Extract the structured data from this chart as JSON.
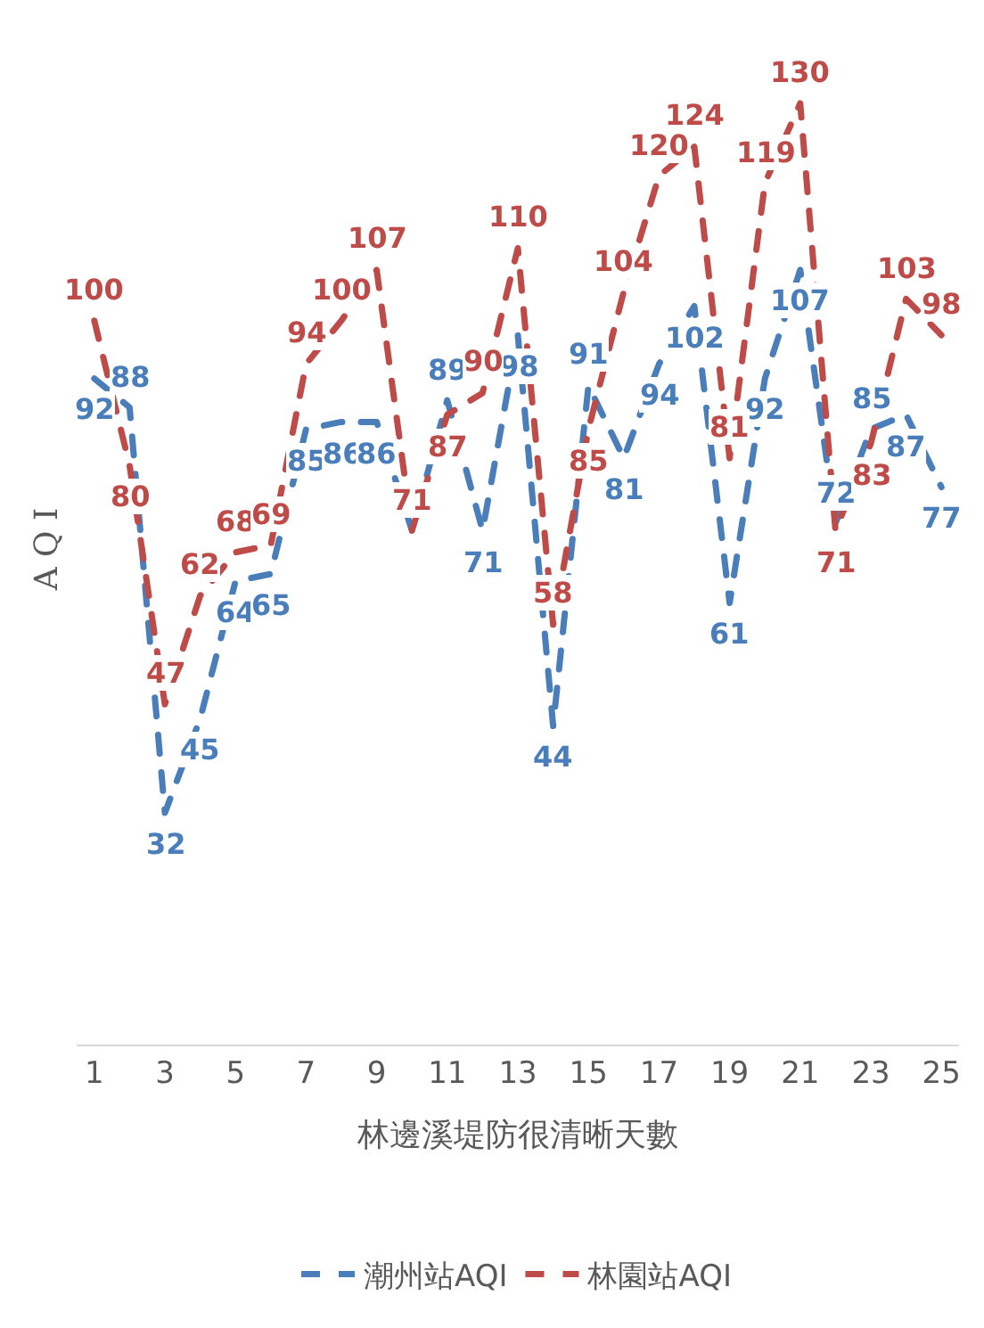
{
  "chart_data": {
    "type": "line",
    "xlabel": "林邊溪堤防很清晰天數",
    "ylabel": "A Q I",
    "x": [
      1,
      2,
      3,
      4,
      5,
      6,
      7,
      8,
      9,
      10,
      11,
      12,
      13,
      14,
      15,
      16,
      17,
      18,
      19,
      20,
      21,
      22,
      23,
      24,
      25
    ],
    "xlim": [
      0.5,
      25.5
    ],
    "xticks": [
      1,
      3,
      5,
      7,
      9,
      11,
      13,
      15,
      17,
      19,
      21,
      23,
      25
    ],
    "tick_labels": "x",
    "series": [
      {
        "name": "潮州站AQI",
        "color": "#4a7ebb",
        "values": [
          92,
          88,
          32,
          45,
          64,
          65,
          85,
          86,
          86,
          71,
          89,
          71,
          98,
          44,
          91,
          81,
          94,
          102,
          61,
          92,
          107,
          72,
          85,
          87,
          77
        ],
        "value_labels": [
          "92",
          "88",
          "32",
          "45",
          "64",
          "65",
          "85",
          "86",
          "86",
          null,
          "89",
          "71",
          "98",
          "44",
          "91",
          "81",
          "94",
          "102",
          "61",
          "92",
          "107",
          "72",
          "85",
          "87",
          "77"
        ]
      },
      {
        "name": "林園站AQI",
        "color": "#be4b48",
        "values": [
          100,
          80,
          47,
          62,
          68,
          69,
          94,
          100,
          107,
          71,
          87,
          90,
          110,
          58,
          85,
          104,
          120,
          124,
          81,
          119,
          130,
          71,
          83,
          103,
          98
        ],
        "value_labels": [
          "100",
          "80",
          "47",
          "62",
          "68",
          "69",
          "94",
          "100",
          "107",
          "71",
          "87",
          "90",
          "110",
          "58",
          "85",
          "104",
          "120",
          "124",
          "81",
          "119",
          "130",
          "71",
          "83",
          "103",
          "98"
        ]
      }
    ],
    "line_style": "dashed",
    "marker": "none",
    "legend": "bottom"
  }
}
